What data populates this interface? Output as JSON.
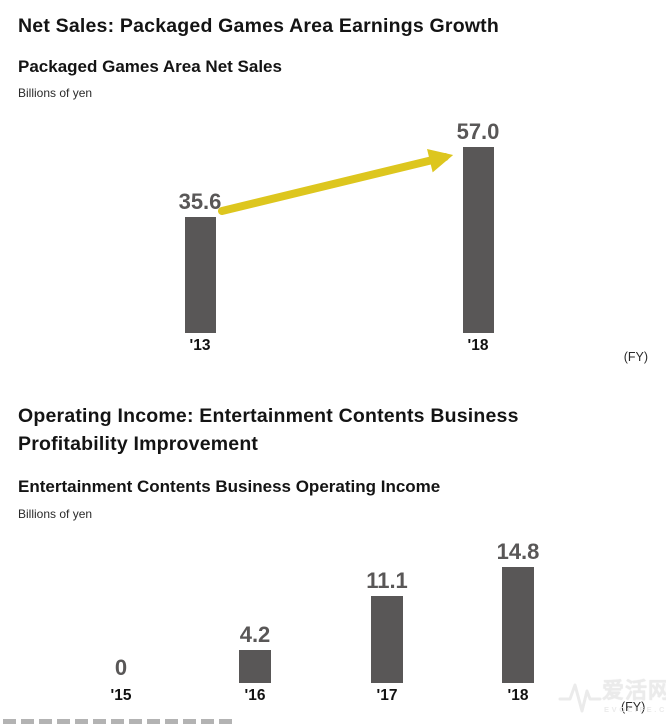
{
  "colors": {
    "bar": "#595757",
    "value_label": "#595757",
    "axis_label": "#121212",
    "arrow": "#ddc61e",
    "watermark": "#ebebeb"
  },
  "sections": [
    {
      "title": "Net Sales: Packaged Games Area Earnings Growth",
      "chart_title": "Packaged Games Area Net Sales",
      "unit_label": "Billions of yen",
      "axis_note": "(FY)"
    },
    {
      "title": "Operating Income: Entertainment Contents Business Profitability Improvement",
      "chart_title": "Entertainment Contents Business Operating Income",
      "unit_label": "Billions of yen",
      "axis_note": "(FY)"
    }
  ],
  "chart_data": [
    {
      "type": "bar",
      "title": "Packaged Games Area Net Sales",
      "ylabel": "Billions of yen",
      "xlabel": "(FY)",
      "categories": [
        "'13",
        "'18"
      ],
      "values": [
        35.6,
        57.0
      ],
      "value_labels": [
        "35.6",
        "57.0"
      ],
      "ylim": [
        0,
        60
      ],
      "grid": false,
      "legend": "none",
      "annotations": [
        {
          "type": "growth-arrow",
          "from_category": "'13",
          "from_value": 35.6,
          "to_category": "'18",
          "to_value": 57.0,
          "color": "#ddc61e"
        }
      ]
    },
    {
      "type": "bar",
      "title": "Entertainment Contents Business Operating Income",
      "ylabel": "Billions of yen",
      "xlabel": "(FY)",
      "categories": [
        "'15",
        "'16",
        "'17",
        "'18"
      ],
      "values": [
        0,
        4.2,
        11.1,
        14.8
      ],
      "value_labels": [
        "0",
        "4.2",
        "11.1",
        "14.8"
      ],
      "ylim": [
        0,
        16
      ],
      "grid": false,
      "legend": "none"
    }
  ],
  "watermark": {
    "site_name": "爱活网",
    "site_domain": "EVOLIFE.CN"
  }
}
